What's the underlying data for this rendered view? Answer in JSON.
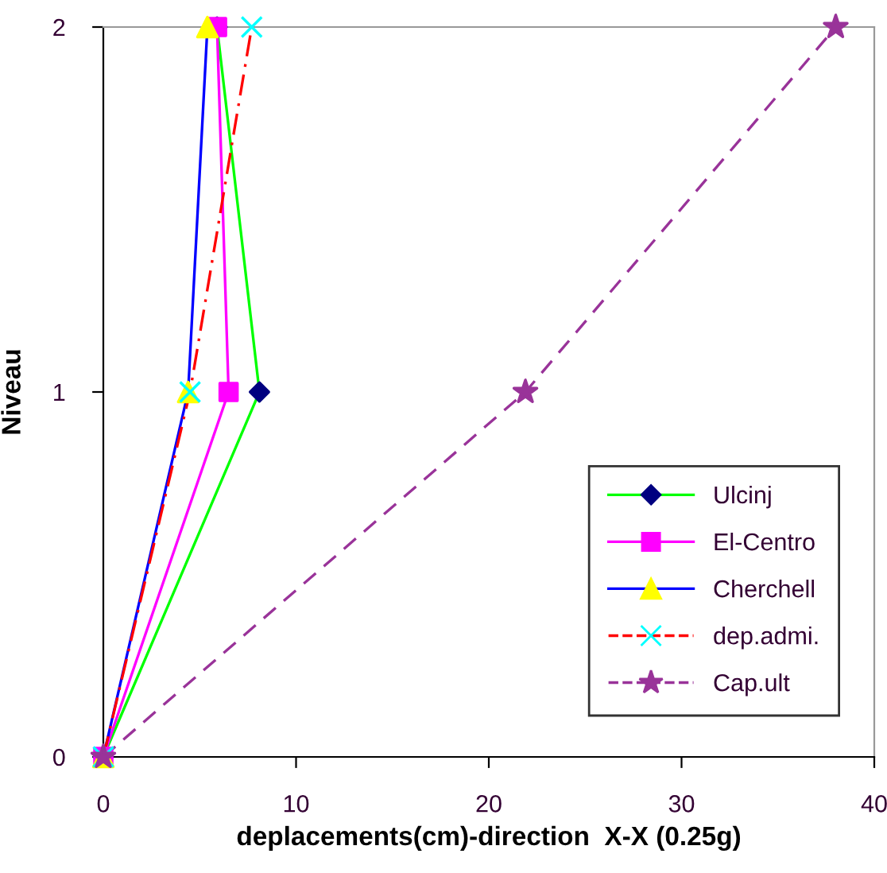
{
  "chart_data": {
    "type": "line",
    "xlabel": "deplacements(cm)-direction  X-X (0.25g)",
    "ylabel": "Niveau",
    "xlim": [
      0,
      40
    ],
    "xticks": [
      0,
      10,
      20,
      30,
      40
    ],
    "ylim": [
      0,
      2
    ],
    "yticks": [
      0,
      1,
      2
    ],
    "grid": false,
    "legend": "bottom right",
    "series": [
      {
        "name": "Ulcinj",
        "color": "#00ff00",
        "colors": [
          "#000080",
          "#000080",
          "#000080"
        ],
        "marker": "diamond",
        "line_style": "solid",
        "x": [
          0,
          8.1,
          5.9
        ],
        "values": [
          0,
          1,
          2
        ]
      },
      {
        "name": "El-Centro",
        "color": "#ff00ff",
        "colors": [
          "#ff00ff",
          "#ff00ff",
          "#ff00ff"
        ],
        "marker": "square",
        "line_style": "solid",
        "x": [
          0,
          6.5,
          5.9
        ],
        "values": [
          0,
          1,
          2
        ]
      },
      {
        "name": "Cherchell",
        "color": "#0000ff",
        "colors": [
          "#ffff00",
          "#ffff00",
          "#ffff00"
        ],
        "marker": "triangle",
        "line_style": "solid",
        "x": [
          0,
          4.4,
          5.4
        ],
        "values": [
          0,
          1,
          2
        ]
      },
      {
        "name": "dep.admi.",
        "color": "#ff0000",
        "colors": [
          "#00ffff",
          "#00ffff",
          "#00ffff"
        ],
        "marker": "cross",
        "line_style": "dashdot",
        "x": [
          0,
          4.5,
          7.7
        ],
        "values": [
          0,
          1,
          2
        ]
      },
      {
        "name": "Cap.ult",
        "color": "#993399",
        "marker": "star",
        "line_style": "dashed",
        "x": [
          0,
          21.9,
          38.0
        ],
        "values": [
          0,
          1,
          2
        ]
      }
    ]
  }
}
